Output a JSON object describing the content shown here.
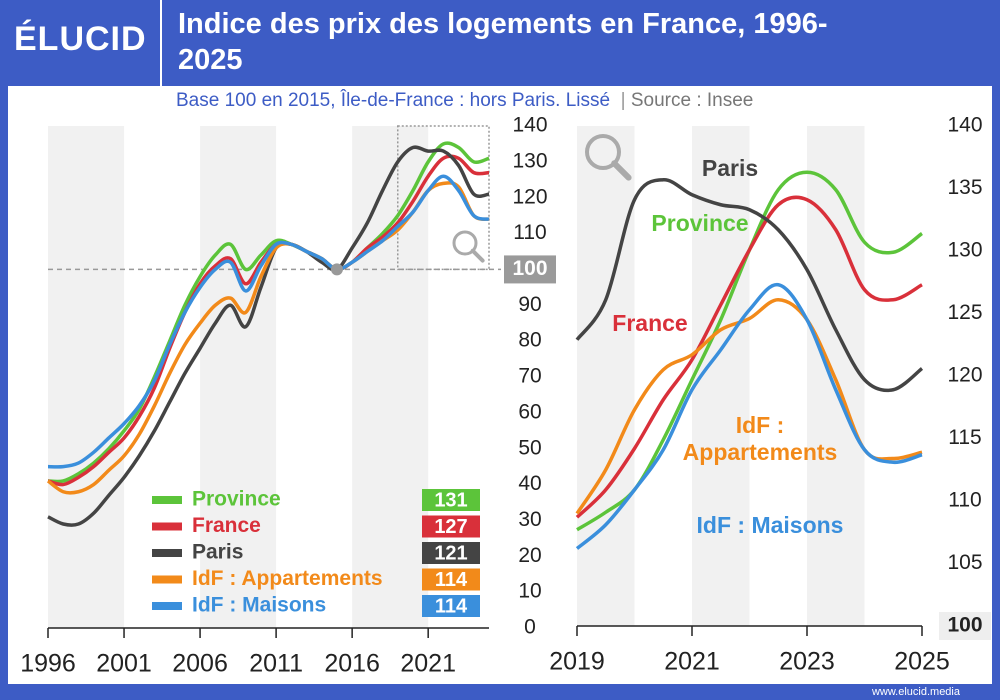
{
  "header": {
    "logo": "ÉLUCID",
    "title": "Indice des prix des logements en France, 1996-2025",
    "subtitle": "Base 100 en 2015, Île-de-France : hors Paris. Lissé",
    "source": "Source : Insee",
    "footer": "www.elucid.media"
  },
  "chart_data": [
    {
      "type": "line",
      "x": [
        1996,
        1997,
        1998,
        1999,
        2000,
        2001,
        2002,
        2003,
        2004,
        2005,
        2006,
        2007,
        2008,
        2009,
        2010,
        2011,
        2012,
        2013,
        2014,
        2015,
        2016,
        2017,
        2018,
        2019,
        2020,
        2021,
        2022,
        2023,
        2024,
        2025
      ],
      "xlim": [
        1996,
        2025
      ],
      "xticks": [
        1996,
        2001,
        2006,
        2011,
        2016,
        2021
      ],
      "ylim": [
        0,
        140
      ],
      "yticks": [
        0,
        10,
        20,
        30,
        40,
        50,
        60,
        70,
        80,
        90,
        100,
        110,
        120,
        130,
        140
      ],
      "series": [
        {
          "name": "Province",
          "color": "#5cc43a",
          "values": [
            41,
            41,
            43,
            46,
            50,
            55,
            61,
            70,
            80,
            90,
            98,
            104,
            107,
            100,
            104,
            108,
            107,
            105,
            103,
            100,
            102,
            106,
            110,
            115,
            122,
            130,
            135,
            134,
            130,
            131
          ]
        },
        {
          "name": "France",
          "color": "#d9303a",
          "values": [
            41,
            40,
            42,
            45,
            49,
            53,
            59,
            67,
            78,
            88,
            96,
            101,
            103,
            96,
            102,
            107,
            107,
            105,
            103,
            100,
            102,
            106,
            109,
            113,
            119,
            126,
            131,
            131,
            127,
            127
          ]
        },
        {
          "name": "Paris",
          "color": "#444444",
          "values": [
            31,
            29,
            29,
            32,
            37,
            42,
            48,
            55,
            63,
            71,
            78,
            85,
            90,
            84,
            95,
            106,
            107,
            105,
            102,
            100,
            106,
            113,
            122,
            130,
            134,
            133,
            133,
            129,
            121,
            121
          ]
        },
        {
          "name": "IdF : Appartements",
          "color": "#f28a1a",
          "values": [
            41,
            38,
            38,
            40,
            44,
            48,
            54,
            62,
            71,
            79,
            85,
            90,
            92,
            88,
            98,
            106,
            107,
            105,
            103,
            100,
            102,
            105,
            108,
            111,
            116,
            122,
            124,
            123,
            115,
            114
          ]
        },
        {
          "name": "IdF : Maisons",
          "color": "#3a8fdc",
          "values": [
            45,
            45,
            46,
            49,
            53,
            57,
            62,
            69,
            79,
            88,
            95,
            100,
            102,
            94,
            101,
            107,
            107,
            105,
            103,
            100,
            102,
            105,
            108,
            112,
            116,
            122,
            126,
            122,
            115,
            114
          ]
        }
      ]
    },
    {
      "type": "line",
      "x": [
        2019,
        2019.5,
        2020,
        2020.5,
        2021,
        2021.5,
        2022,
        2022.5,
        2023,
        2023.5,
        2024,
        2024.5,
        2025
      ],
      "xlim": [
        2019,
        2025
      ],
      "xticks": [
        2019,
        2021,
        2023,
        2025
      ],
      "ylim": [
        100,
        140
      ],
      "yticks": [
        100,
        105,
        110,
        115,
        120,
        125,
        130,
        135,
        140
      ],
      "series": [
        {
          "name": "Province",
          "color": "#5cc43a",
          "values": [
            107.7,
            109.1,
            110.9,
            114.9,
            119.7,
            124.5,
            130.1,
            134.9,
            136.3,
            134.9,
            130.7,
            129.9,
            131.4
          ]
        },
        {
          "name": "France",
          "color": "#d9303a",
          "values": [
            108.7,
            110.9,
            114.2,
            118.1,
            121.3,
            125.7,
            130.1,
            133.7,
            134.1,
            131.7,
            126.9,
            126.1,
            127.3
          ]
        },
        {
          "name": "Paris",
          "color": "#444444",
          "values": [
            122.9,
            126.1,
            134.1,
            135.7,
            134.5,
            133.7,
            133.3,
            131.7,
            128.5,
            123.7,
            119.7,
            118.9,
            120.6
          ]
        },
        {
          "name": "IdF : Appartements",
          "color": "#f28a1a",
          "values": [
            109.0,
            112.5,
            117.3,
            120.5,
            121.7,
            123.7,
            124.6,
            126.1,
            124.5,
            119.7,
            114.1,
            113.4,
            113.9
          ]
        },
        {
          "name": "IdF : Maisons",
          "color": "#3a8fdc",
          "values": [
            106.2,
            108.1,
            110.9,
            114.1,
            118.9,
            122.1,
            125.3,
            127.3,
            124.5,
            118.9,
            114.1,
            113.1,
            113.7
          ]
        }
      ]
    }
  ]
}
